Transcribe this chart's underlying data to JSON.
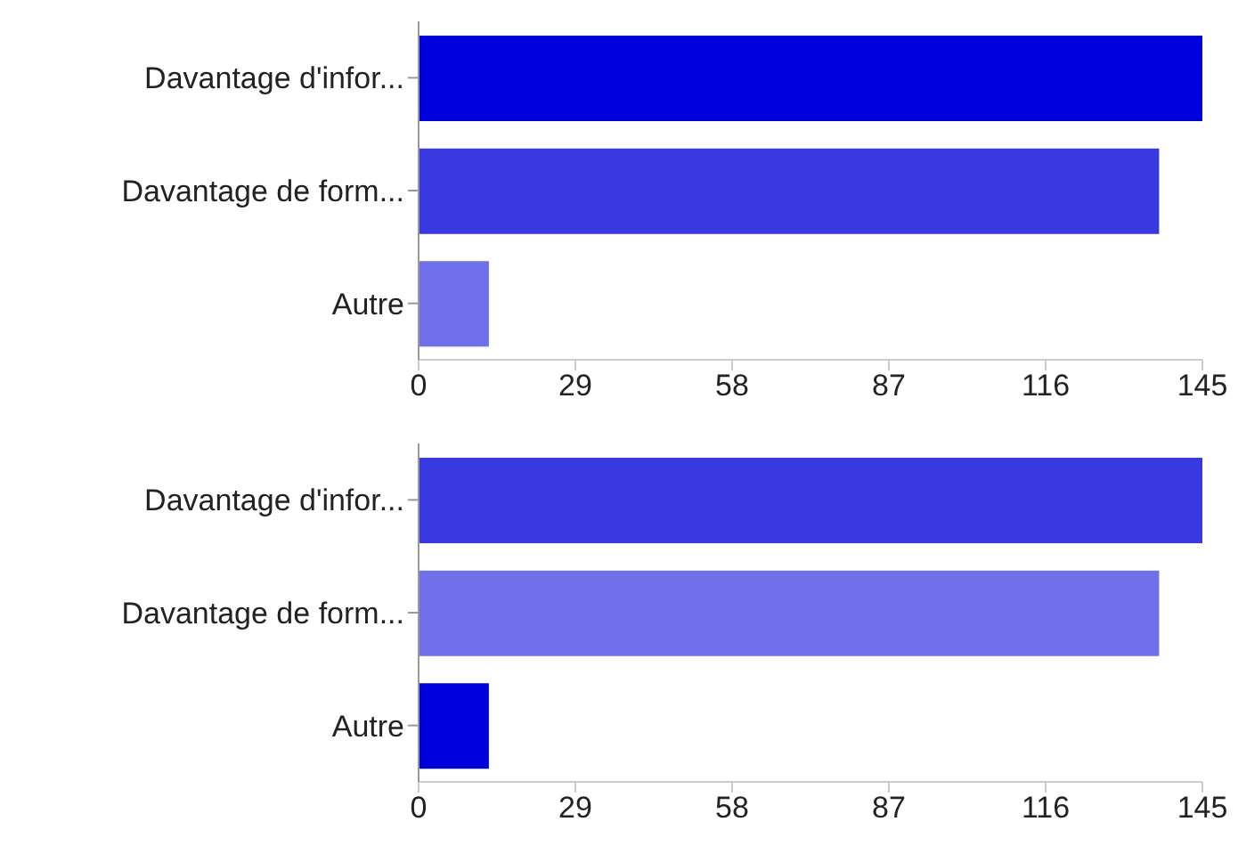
{
  "chart_data": [
    {
      "type": "bar",
      "orientation": "horizontal",
      "categories": [
        "Davantage d'infor...",
        "Davantage de form...",
        "Autre"
      ],
      "values": [
        145,
        137,
        13
      ],
      "colors": [
        "#0000dd",
        "#3939e1",
        "#7070ea"
      ],
      "xlim": [
        0,
        145
      ],
      "xticks": [
        0,
        29,
        58,
        87,
        116,
        145
      ],
      "grid": false,
      "legend": false
    },
    {
      "type": "bar",
      "orientation": "horizontal",
      "categories": [
        "Davantage d'infor...",
        "Davantage de form...",
        "Autre"
      ],
      "values": [
        145,
        137,
        13
      ],
      "colors": [
        "#3939e1",
        "#7070ea",
        "#0000dd"
      ],
      "xlim": [
        0,
        145
      ],
      "xticks": [
        0,
        29,
        58,
        87,
        116,
        145
      ],
      "grid": false,
      "legend": false
    }
  ]
}
